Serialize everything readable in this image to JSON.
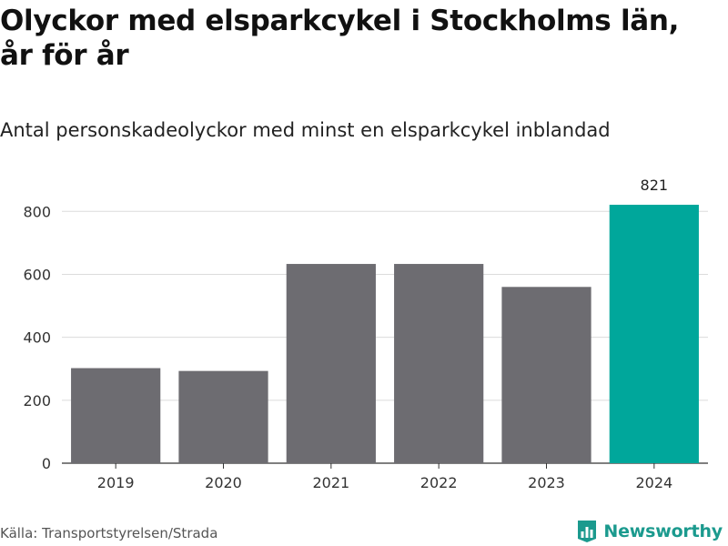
{
  "header": {
    "title": "Olyckor med elsparkcykel i Stockholms län, år för år",
    "subtitle": "Antal personskadeolyckor med minst en elsparkcykel inblandad"
  },
  "chart_data": {
    "type": "bar",
    "title": "Olyckor med elsparkcykel i Stockholms län, år för år",
    "subtitle": "Antal personskadeolyckor med minst en elsparkcykel inblandad",
    "categories": [
      "2019",
      "2020",
      "2021",
      "2022",
      "2023",
      "2024"
    ],
    "values": [
      302,
      293,
      633,
      633,
      560,
      821
    ],
    "bar_colors": [
      "#6d6c71",
      "#6d6c71",
      "#6d6c71",
      "#6d6c71",
      "#6d6c71",
      "#00a79b"
    ],
    "data_labels": [
      {
        "index": 5,
        "text": "821"
      }
    ],
    "yticks": [
      0,
      200,
      400,
      600,
      800
    ],
    "ylim": [
      0,
      880
    ],
    "xlabel": "",
    "ylabel": "",
    "grid": true,
    "legend": "none"
  },
  "footer": {
    "source": "Källa: Transportstyrelsen/Strada",
    "brand": "Newsworthy",
    "brand_icon": "bar-chart-logo-icon",
    "brand_color": "#1b9a8e"
  }
}
